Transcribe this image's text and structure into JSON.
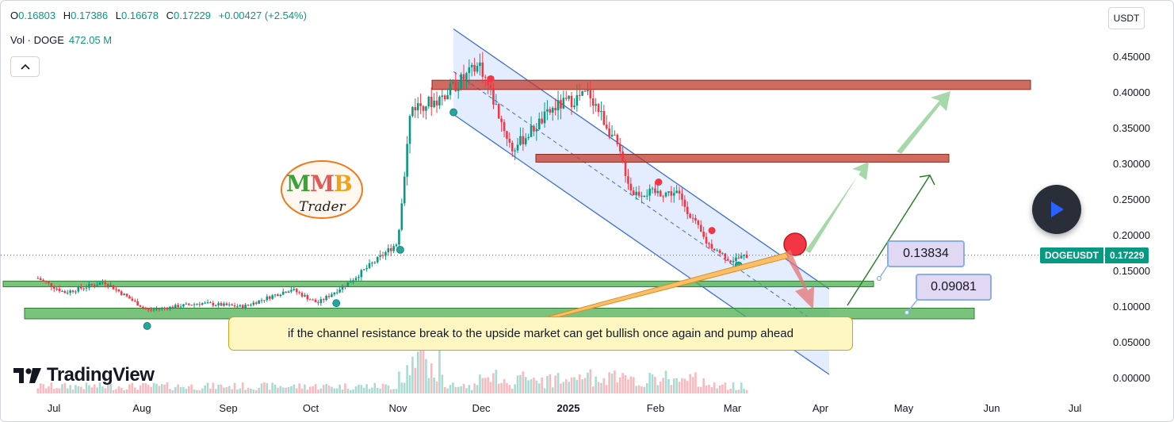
{
  "header": {
    "open_label": "O",
    "open_value": "0.16803",
    "high_label": "H",
    "high_value": "0.17386",
    "low_label": "L",
    "low_value": "0.16678",
    "close_label": "C",
    "close_value": "0.17229",
    "change_value": "+0.00427 (+2.54%)",
    "vol_label": "Vol · DOGE",
    "vol_value": "472.05 M"
  },
  "currency": "USDT",
  "symbol_tag": "DOGEUSDT",
  "last_price": "0.17229",
  "callouts": {
    "upper": "0.13834",
    "lower": "0.09081"
  },
  "note": "if the channel resistance break to the upside market can get bullish once again and pump ahead",
  "logo": {
    "mmm_1": "M",
    "mmm_2": "M",
    "mmm_3": "B",
    "trader": "Trader"
  },
  "brand": "TradingView",
  "colors": {
    "up": "#089981",
    "down": "#f23645",
    "support": "#4caf50",
    "resistance": "#c0392b",
    "channel": "#3c6fd8"
  },
  "icons": [
    "chevron-up-icon",
    "play-icon",
    "tradingview-logo-icon",
    "bitcoin-icon"
  ],
  "chart_data": {
    "type": "candlestick",
    "title": "DOGEUSDT",
    "ylim": [
      0,
      0.48
    ],
    "y_ticks": [
      "0.45000",
      "0.40000",
      "0.35000",
      "0.30000",
      "0.25000",
      "0.20000",
      "0.15000",
      "0.10000",
      "0.05000",
      "0.00000"
    ],
    "x_ticks": [
      "Jul",
      "Aug",
      "Sep",
      "Oct",
      "Nov",
      "Dec",
      "2025",
      "Feb",
      "Mar",
      "Apr",
      "May",
      "Jun",
      "Jul"
    ],
    "grid": false,
    "price_path": [
      {
        "date": "2024-06-25",
        "price": 0.14
      },
      {
        "date": "2024-07-05",
        "price": 0.12
      },
      {
        "date": "2024-07-20",
        "price": 0.135
      },
      {
        "date": "2024-08-05",
        "price": 0.095
      },
      {
        "date": "2024-08-25",
        "price": 0.105
      },
      {
        "date": "2024-09-10",
        "price": 0.1
      },
      {
        "date": "2024-09-28",
        "price": 0.125
      },
      {
        "date": "2024-10-08",
        "price": 0.105
      },
      {
        "date": "2024-10-20",
        "price": 0.135
      },
      {
        "date": "2024-10-30",
        "price": 0.165
      },
      {
        "date": "2024-11-07",
        "price": 0.19
      },
      {
        "date": "2024-11-12",
        "price": 0.38
      },
      {
        "date": "2024-11-22",
        "price": 0.39
      },
      {
        "date": "2024-12-08",
        "price": 0.44
      },
      {
        "date": "2024-12-20",
        "price": 0.32
      },
      {
        "date": "2025-01-05",
        "price": 0.38
      },
      {
        "date": "2025-01-18",
        "price": 0.4
      },
      {
        "date": "2025-01-28",
        "price": 0.33
      },
      {
        "date": "2025-02-03",
        "price": 0.26
      },
      {
        "date": "2025-02-20",
        "price": 0.26
      },
      {
        "date": "2025-03-03",
        "price": 0.19
      },
      {
        "date": "2025-03-12",
        "price": 0.165
      },
      {
        "date": "2025-03-19",
        "price": 0.17229
      }
    ],
    "zones": [
      {
        "kind": "resistance",
        "low": 0.405,
        "high": 0.418
      },
      {
        "kind": "resistance",
        "low": 0.303,
        "high": 0.314
      },
      {
        "kind": "support",
        "low": 0.128,
        "high": 0.136
      },
      {
        "kind": "support",
        "low": 0.083,
        "high": 0.098
      }
    ],
    "channel": {
      "upper": [
        {
          "date": "2024-11-28",
          "price": 0.49
        },
        {
          "date": "2025-04-18",
          "price": 0.125
        }
      ],
      "lower": [
        {
          "date": "2024-11-28",
          "price": 0.37
        },
        {
          "date": "2025-04-18",
          "price": 0.005
        }
      ]
    },
    "markers": {
      "sell": [
        {
          "date": "2024-12-12",
          "price": 0.42
        },
        {
          "date": "2025-02-13",
          "price": 0.275
        },
        {
          "date": "2025-03-05",
          "price": 0.207
        }
      ],
      "buy": [
        {
          "date": "2024-08-05",
          "price": 0.073
        },
        {
          "date": "2024-10-15",
          "price": 0.105
        },
        {
          "date": "2024-11-08",
          "price": 0.18
        },
        {
          "date": "2024-11-28",
          "price": 0.373
        },
        {
          "date": "2025-03-15",
          "price": 0.158
        }
      ]
    },
    "last_price": 0.17229
  }
}
